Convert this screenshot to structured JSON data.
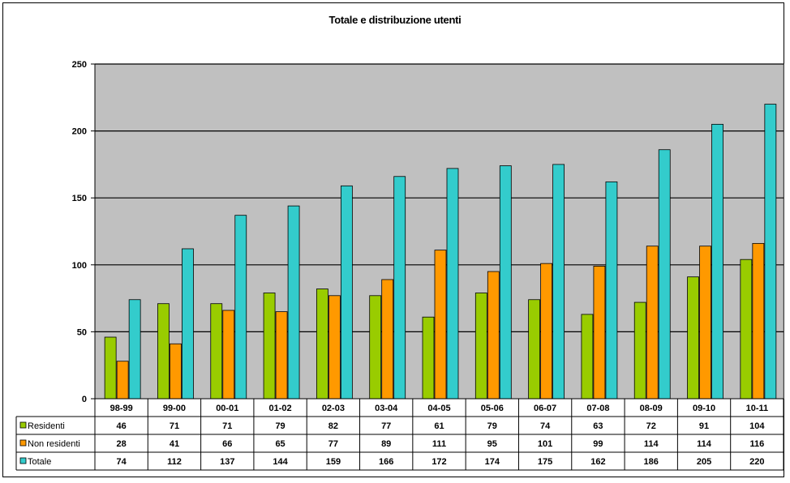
{
  "chart_data": {
    "type": "bar",
    "title": "Totale e distribuzione utenti",
    "categories": [
      "98-99",
      "99-00",
      "00-01",
      "01-02",
      "02-03",
      "03-04",
      "04-05",
      "05-06",
      "06-07",
      "07-08",
      "08-09",
      "09-10",
      "10-11"
    ],
    "series": [
      {
        "name": "Residenti",
        "color": "#99CC00",
        "values": [
          46,
          71,
          71,
          79,
          82,
          77,
          61,
          79,
          74,
          63,
          72,
          91,
          104
        ]
      },
      {
        "name": "Non residenti",
        "color": "#FF9900",
        "values": [
          28,
          41,
          66,
          65,
          77,
          89,
          111,
          95,
          101,
          99,
          114,
          114,
          116
        ]
      },
      {
        "name": "Totale",
        "color": "#33CCCC",
        "values": [
          74,
          112,
          137,
          144,
          159,
          166,
          172,
          174,
          175,
          162,
          186,
          205,
          220
        ]
      }
    ],
    "ylim": [
      0,
      250
    ],
    "yticks": [
      0,
      50,
      100,
      150,
      200,
      250
    ],
    "grid": true,
    "legend": "data-table",
    "plot_background": "#C0C0C0"
  }
}
